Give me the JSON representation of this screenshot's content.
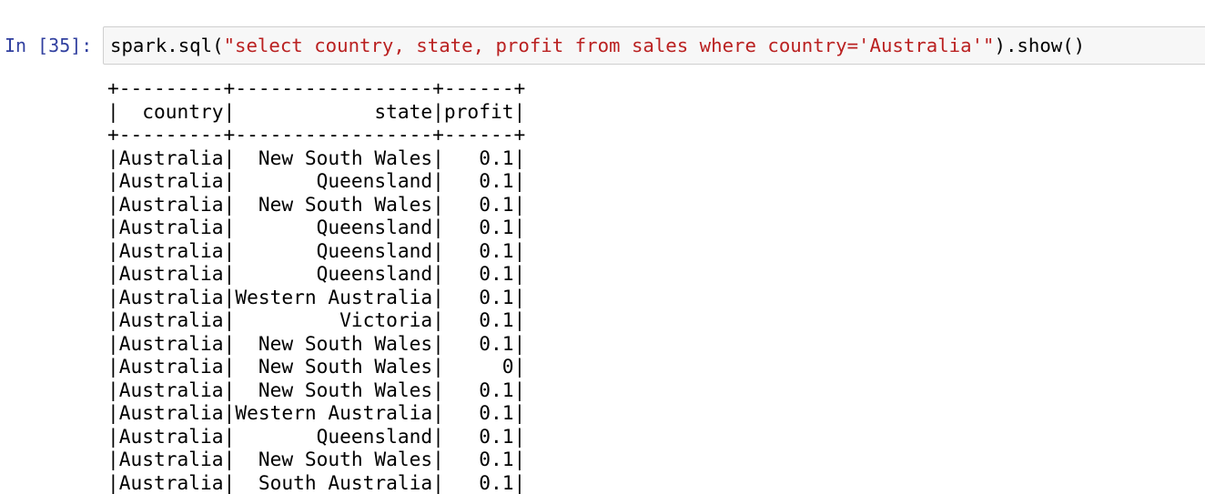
{
  "cell": {
    "prompt": "In [35]:",
    "code": [
      "spark.sql(",
      "\"select country, state, profit from sales where country='Australia'\"",
      ").show()"
    ],
    "output": [
      "+---------+-----------------+------+",
      "|  country|            state|profit|",
      "+---------+-----------------+------+",
      "|Australia|  New South Wales|   0.1|",
      "|Australia|       Queensland|   0.1|",
      "|Australia|  New South Wales|   0.1|",
      "|Australia|       Queensland|   0.1|",
      "|Australia|       Queensland|   0.1|",
      "|Australia|       Queensland|   0.1|",
      "|Australia|Western Australia|   0.1|",
      "|Australia|         Victoria|   0.1|",
      "|Australia|  New South Wales|   0.1|",
      "|Australia|  New South Wales|     0|",
      "|Australia|  New South Wales|   0.1|",
      "|Australia|Western Australia|   0.1|",
      "|Australia|       Queensland|   0.1|",
      "|Australia|  New South Wales|   0.1|",
      "|Australia|  South Australia|   0.1|"
    ]
  }
}
